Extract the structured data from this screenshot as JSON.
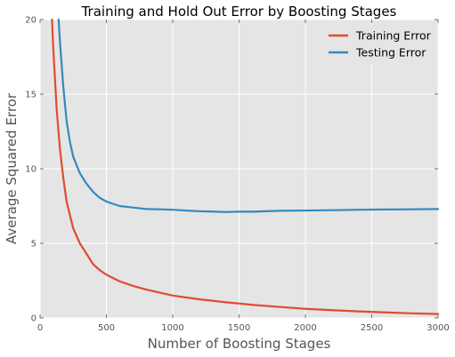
{
  "chart_data": {
    "type": "line",
    "title": "Training and Hold Out Error by Boosting Stages",
    "xlabel": "Number of Boosting Stages",
    "ylabel": "Average Squared Error",
    "xlim": [
      0,
      3000
    ],
    "ylim": [
      0,
      20
    ],
    "x_ticks": [
      "0",
      "500",
      "1000",
      "1500",
      "2000",
      "2500",
      "3000"
    ],
    "y_ticks": [
      "0",
      "5",
      "10",
      "15",
      "20"
    ],
    "grid": true,
    "legend_position": "top-right",
    "background_color": "#e5e5e5",
    "grid_color": "#ffffff",
    "series": [
      {
        "name": "Training Error",
        "color": "#e24a33",
        "x": [
          90,
          100,
          125,
          150,
          175,
          200,
          250,
          300,
          350,
          400,
          450,
          500,
          600,
          700,
          800,
          900,
          1000,
          1200,
          1400,
          1600,
          1800,
          2000,
          2200,
          2400,
          2600,
          2800,
          3000
        ],
        "y": [
          20.0,
          18.0,
          14.0,
          11.3,
          9.4,
          7.8,
          6.0,
          5.0,
          4.3,
          3.6,
          3.2,
          2.9,
          2.45,
          2.15,
          1.9,
          1.7,
          1.5,
          1.25,
          1.05,
          0.88,
          0.74,
          0.61,
          0.52,
          0.44,
          0.37,
          0.31,
          0.26
        ]
      },
      {
        "name": "Testing Error",
        "color": "#348abd",
        "x": [
          140,
          150,
          175,
          200,
          225,
          250,
          300,
          350,
          400,
          450,
          500,
          550,
          600,
          700,
          800,
          900,
          1000,
          1100,
          1200,
          1300,
          1400,
          1500,
          1600,
          1700,
          1800,
          2000,
          2200,
          2400,
          2600,
          2800,
          3000
        ],
        "y": [
          20.0,
          18.5,
          15.5,
          13.2,
          11.8,
          10.8,
          9.7,
          9.0,
          8.45,
          8.05,
          7.8,
          7.65,
          7.5,
          7.4,
          7.3,
          7.28,
          7.25,
          7.2,
          7.15,
          7.13,
          7.1,
          7.12,
          7.12,
          7.15,
          7.18,
          7.2,
          7.22,
          7.25,
          7.27,
          7.28,
          7.3
        ]
      }
    ]
  }
}
